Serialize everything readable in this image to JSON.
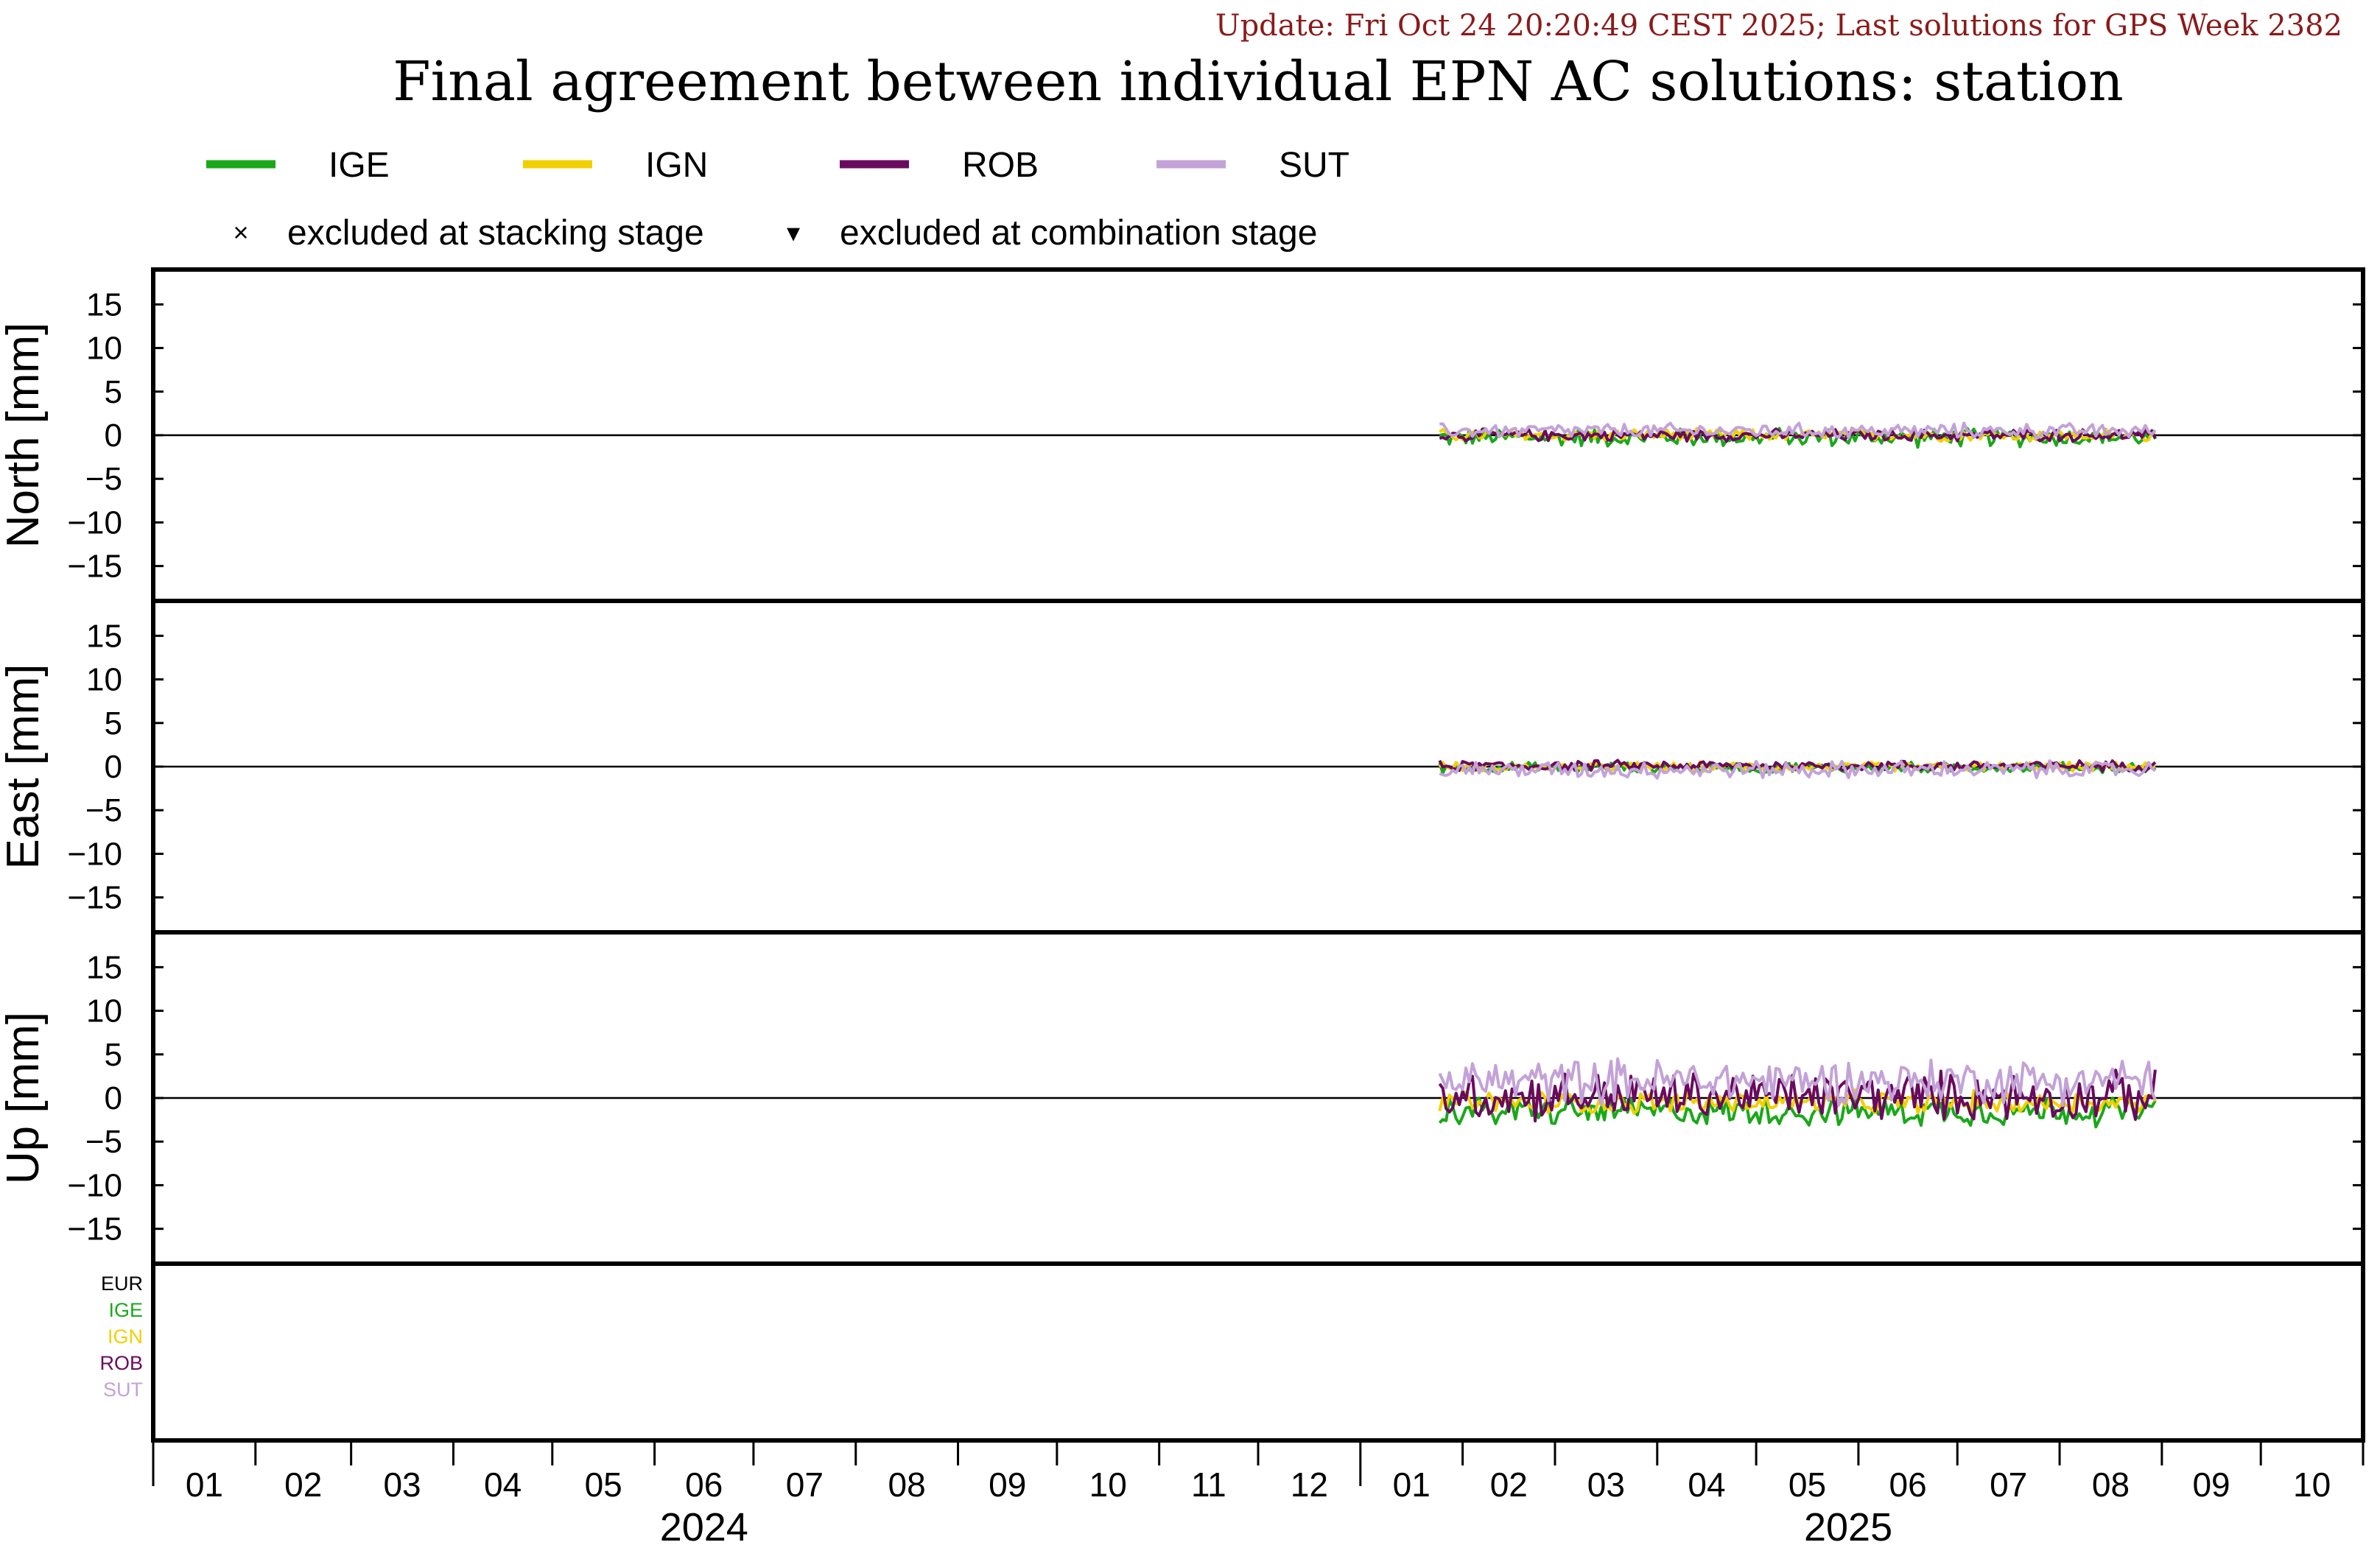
{
  "header": {
    "update_text": "Update: Fri Oct 24 20:20:49 CEST 2025; Last solutions for GPS Week 2382",
    "update_color": "#8b1a1a",
    "title": "Final agreement between individual EPN AC solutions: station"
  },
  "legend": {
    "series": [
      {
        "name": "IGE",
        "color": "#1aa81a"
      },
      {
        "name": "IGN",
        "color": "#f2d000"
      },
      {
        "name": "ROB",
        "color": "#6a0a5e"
      },
      {
        "name": "SUT",
        "color": "#c3a2d8"
      }
    ],
    "markers": [
      {
        "symbol": "×",
        "label": "excluded at stacking stage"
      },
      {
        "symbol": "▾",
        "label": "excluded at combination stage"
      }
    ]
  },
  "bottom_panel": {
    "labels": [
      {
        "name": "EUR",
        "color": "#000000"
      },
      {
        "name": "IGE",
        "color": "#1aa81a"
      },
      {
        "name": "IGN",
        "color": "#f2d000"
      },
      {
        "name": "ROB",
        "color": "#6a0a5e"
      },
      {
        "name": "SUT",
        "color": "#c3a2d8"
      }
    ]
  },
  "x_axis": {
    "months": [
      "01",
      "02",
      "03",
      "04",
      "05",
      "06",
      "07",
      "08",
      "09",
      "10",
      "11",
      "12",
      "01",
      "02",
      "03",
      "04",
      "05",
      "06",
      "07",
      "08",
      "09",
      "10"
    ],
    "years": [
      {
        "label": "2024",
        "month_index": 5.5
      },
      {
        "label": "2025",
        "month_index": 16.9
      }
    ]
  },
  "chart_data": {
    "type": "line",
    "x_range": [
      "2024-01-01",
      "2025-10-31"
    ],
    "x_unit": "date",
    "data_start": "2025-01-25",
    "data_end": "2025-08-30",
    "panels": [
      {
        "ylabel": "North [mm]",
        "ylim": [
          -19,
          19
        ],
        "yticks": [
          15,
          10,
          5,
          0,
          -5,
          -10,
          -15
        ],
        "series": [
          {
            "name": "IGE",
            "range": [
              -1.5,
              1.0
            ]
          },
          {
            "name": "IGN",
            "range": [
              -0.8,
              0.8
            ]
          },
          {
            "name": "ROB",
            "range": [
              -0.8,
              0.8
            ]
          },
          {
            "name": "SUT",
            "range": [
              -0.5,
              1.5
            ]
          }
        ]
      },
      {
        "ylabel": "East [mm]",
        "ylim": [
          -19,
          19
        ],
        "yticks": [
          15,
          10,
          5,
          0,
          -5,
          -10,
          -15
        ],
        "series": [
          {
            "name": "IGE",
            "range": [
              -0.8,
              0.6
            ]
          },
          {
            "name": "IGN",
            "range": [
              -0.6,
              0.6
            ]
          },
          {
            "name": "ROB",
            "range": [
              -0.6,
              0.8
            ]
          },
          {
            "name": "SUT",
            "range": [
              -1.5,
              0.8
            ]
          }
        ]
      },
      {
        "ylabel": "Up [mm]",
        "ylim": [
          -19,
          19
        ],
        "yticks": [
          15,
          10,
          5,
          0,
          -5,
          -10,
          -15
        ],
        "series": [
          {
            "name": "IGE",
            "range": [
              -3.5,
              0.5
            ]
          },
          {
            "name": "IGN",
            "range": [
              -2.0,
              1.0
            ]
          },
          {
            "name": "ROB",
            "range": [
              -3.0,
              3.5
            ]
          },
          {
            "name": "SUT",
            "range": [
              -1.0,
              5.0
            ]
          }
        ]
      }
    ]
  }
}
